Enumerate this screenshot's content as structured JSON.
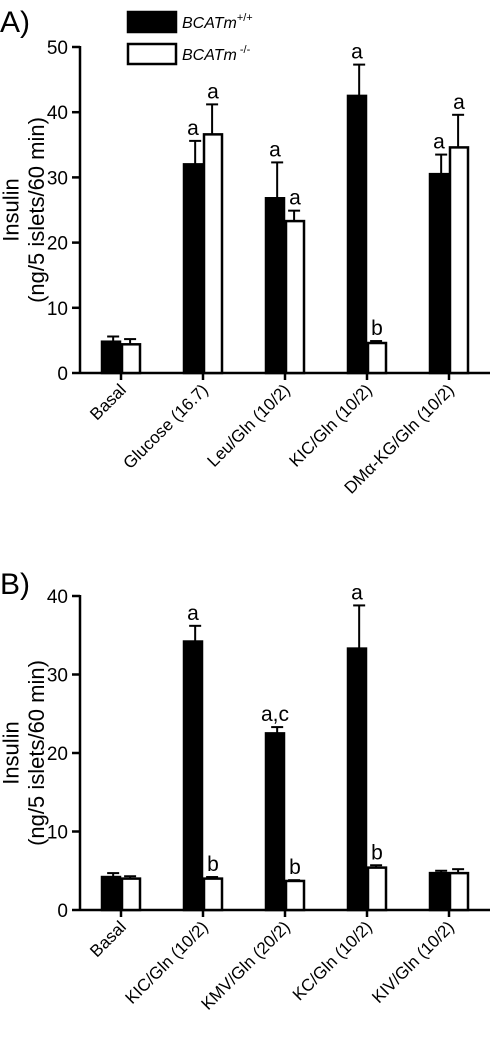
{
  "legend": [
    {
      "base": "BCATm",
      "sup": "+/+",
      "color": "#000000"
    },
    {
      "base": "BCATm",
      "sup": " -/-",
      "color": "#ffffff"
    }
  ],
  "chart_data": [
    {
      "type": "bar",
      "panel_label": "A)",
      "ylabel_line1": "Insulin",
      "ylabel_line2": "(ng/5 islets/60 min)",
      "ylim": [
        0,
        50
      ],
      "yticks": [
        0,
        10,
        20,
        30,
        40,
        50
      ],
      "categories": [
        "Basal",
        "Glucose (16.7)",
        "Leu/Gln (10/2)",
        "KIC/Gln (10/2)",
        "DMα-KG/Gln (10/2)"
      ],
      "series": [
        {
          "name": "BCATm+/+",
          "values": [
            4.8,
            32.0,
            26.8,
            42.5,
            30.5
          ],
          "errors": [
            0.8,
            3.6,
            5.5,
            4.8,
            3.0
          ],
          "labels": [
            "",
            "a",
            "a",
            "a",
            "a"
          ]
        },
        {
          "name": "BCATm-/-",
          "values": [
            4.4,
            36.6,
            23.3,
            4.6,
            34.6
          ],
          "errors": [
            0.8,
            4.6,
            1.6,
            0.3,
            5.0
          ],
          "labels": [
            "",
            "a",
            "a",
            "b",
            "a"
          ]
        }
      ]
    },
    {
      "type": "bar",
      "panel_label": "B)",
      "ylabel_line1": "Insulin",
      "ylabel_line2": "(ng/5 islets/60 min)",
      "ylim": [
        0,
        40
      ],
      "yticks": [
        0,
        10,
        20,
        30,
        40
      ],
      "categories": [
        "Basal",
        "KIC/Gln (10/2)",
        "KMV/Gln (20/2)",
        "KC/Gln (10/2)",
        "KIV/Gln (10/2)"
      ],
      "series": [
        {
          "name": "BCATm+/+",
          "values": [
            4.2,
            34.2,
            22.5,
            33.3,
            4.7
          ],
          "errors": [
            0.5,
            2.0,
            0.8,
            5.5,
            0.3
          ],
          "labels": [
            "",
            "a",
            "a,c",
            "a",
            ""
          ]
        },
        {
          "name": "BCATm-/-",
          "values": [
            4.0,
            4.0,
            3.7,
            5.4,
            4.7
          ],
          "errors": [
            0.3,
            0.2,
            0.1,
            0.3,
            0.5
          ],
          "labels": [
            "",
            "b",
            "b",
            "b",
            ""
          ]
        }
      ]
    }
  ]
}
